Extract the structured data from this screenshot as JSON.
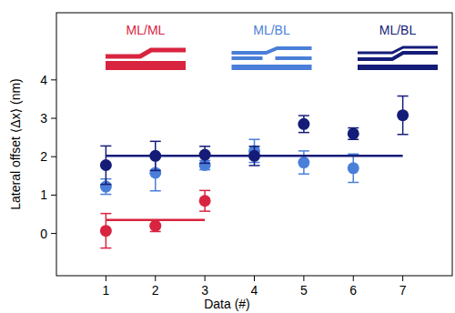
{
  "chart_data": {
    "type": "scatter",
    "xlabel": "Data (#)",
    "ylabel": "Lateral offset ⟨Δx⟩ (nm)",
    "xlim": [
      0,
      8
    ],
    "xticks": [
      1,
      2,
      3,
      4,
      5,
      6,
      7
    ],
    "ylim": [
      -1.1,
      5.75
    ],
    "yticks": [
      0,
      1,
      2,
      3,
      4
    ],
    "legend": "top",
    "series": [
      {
        "name": "ML/ML",
        "color": "#d9243f",
        "marker": "circle",
        "x": [
          1,
          2,
          3
        ],
        "values": [
          0.07,
          0.2,
          0.85
        ],
        "errors": [
          0.45,
          0.15,
          0.27
        ]
      },
      {
        "name": "ML/BL",
        "color": "#4a7fd9",
        "marker": "circle",
        "x": [
          1,
          2,
          3,
          4,
          5,
          6
        ],
        "values": [
          1.22,
          1.58,
          1.78,
          2.15,
          1.85,
          1.7
        ],
        "errors": [
          0.2,
          0.47,
          0.12,
          0.3,
          0.3,
          0.37
        ]
      },
      {
        "name": "ML/BL",
        "color": "#141c78",
        "marker": "circle",
        "x": [
          1,
          2,
          3,
          4,
          5,
          6,
          7
        ],
        "values": [
          1.78,
          2.02,
          2.05,
          2.02,
          2.85,
          2.6,
          3.08
        ],
        "errors": [
          0.5,
          0.38,
          0.22,
          0.25,
          0.22,
          0.15,
          0.5
        ]
      },
      {
        "type": "line",
        "line_style": "solid",
        "color": "#d9243f",
        "x": [
          1,
          3
        ],
        "values": [
          0.35,
          0.35
        ]
      },
      {
        "type": "line",
        "line_style": "solid",
        "color": "#141c78",
        "x": [
          1,
          7
        ],
        "values": [
          2.02,
          2.02
        ]
      }
    ]
  }
}
